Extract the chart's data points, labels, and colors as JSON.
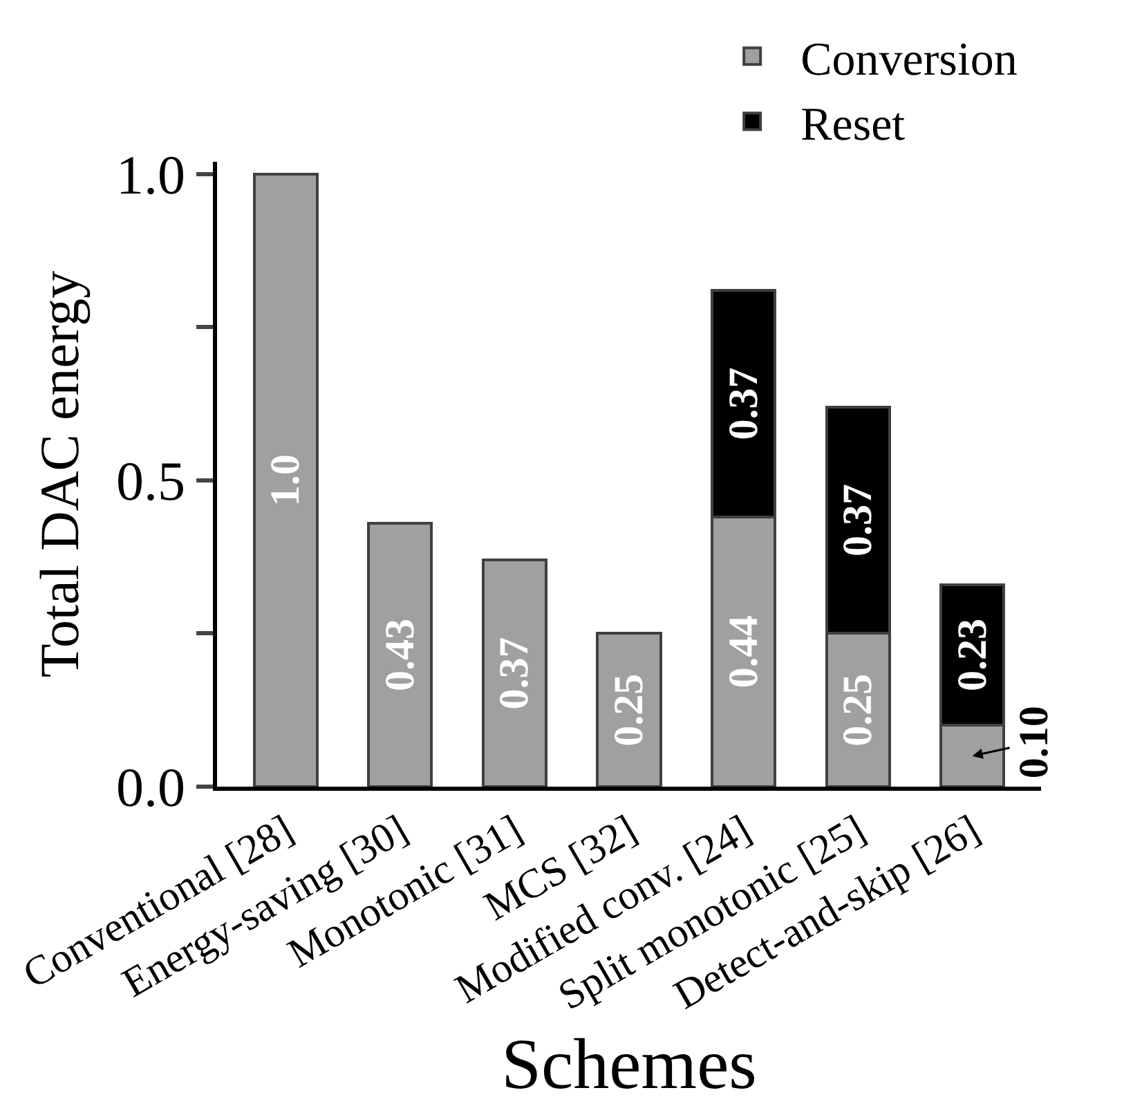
{
  "chart_data": {
    "type": "bar",
    "stacked": true,
    "xlabel": "Schemes",
    "ylabel": "Total DAC energy",
    "categories": [
      "Conventional [28]",
      "Energy-saving [30]",
      "Monotonic [31]",
      "MCS [32]",
      "Modified conv. [24]",
      "Split monotonic [25]",
      "Detect-and-skip [26]"
    ],
    "series": [
      {
        "name": "Conversion",
        "color": "#a0a0a0",
        "values": [
          1.0,
          0.43,
          0.37,
          0.25,
          0.44,
          0.25,
          0.1
        ],
        "value_labels": [
          "1.0",
          "0.43",
          "0.37",
          "0.25",
          "0.44",
          "0.25",
          "0.10"
        ]
      },
      {
        "name": "Reset",
        "color": "#000000",
        "values": [
          null,
          null,
          null,
          null,
          0.37,
          0.37,
          0.23
        ],
        "value_labels": [
          null,
          null,
          null,
          null,
          "0.37",
          "0.37",
          "0.23"
        ]
      }
    ],
    "ylim": [
      0,
      1.02
    ],
    "yticks": [
      {
        "value": 0,
        "label": "0.0"
      },
      {
        "value": 0.25,
        "label": null
      },
      {
        "value": 0.5,
        "label": "0.5"
      },
      {
        "value": 0.75,
        "label": null
      },
      {
        "value": 1.0,
        "label": "1.0"
      }
    ],
    "legend": "top right"
  }
}
